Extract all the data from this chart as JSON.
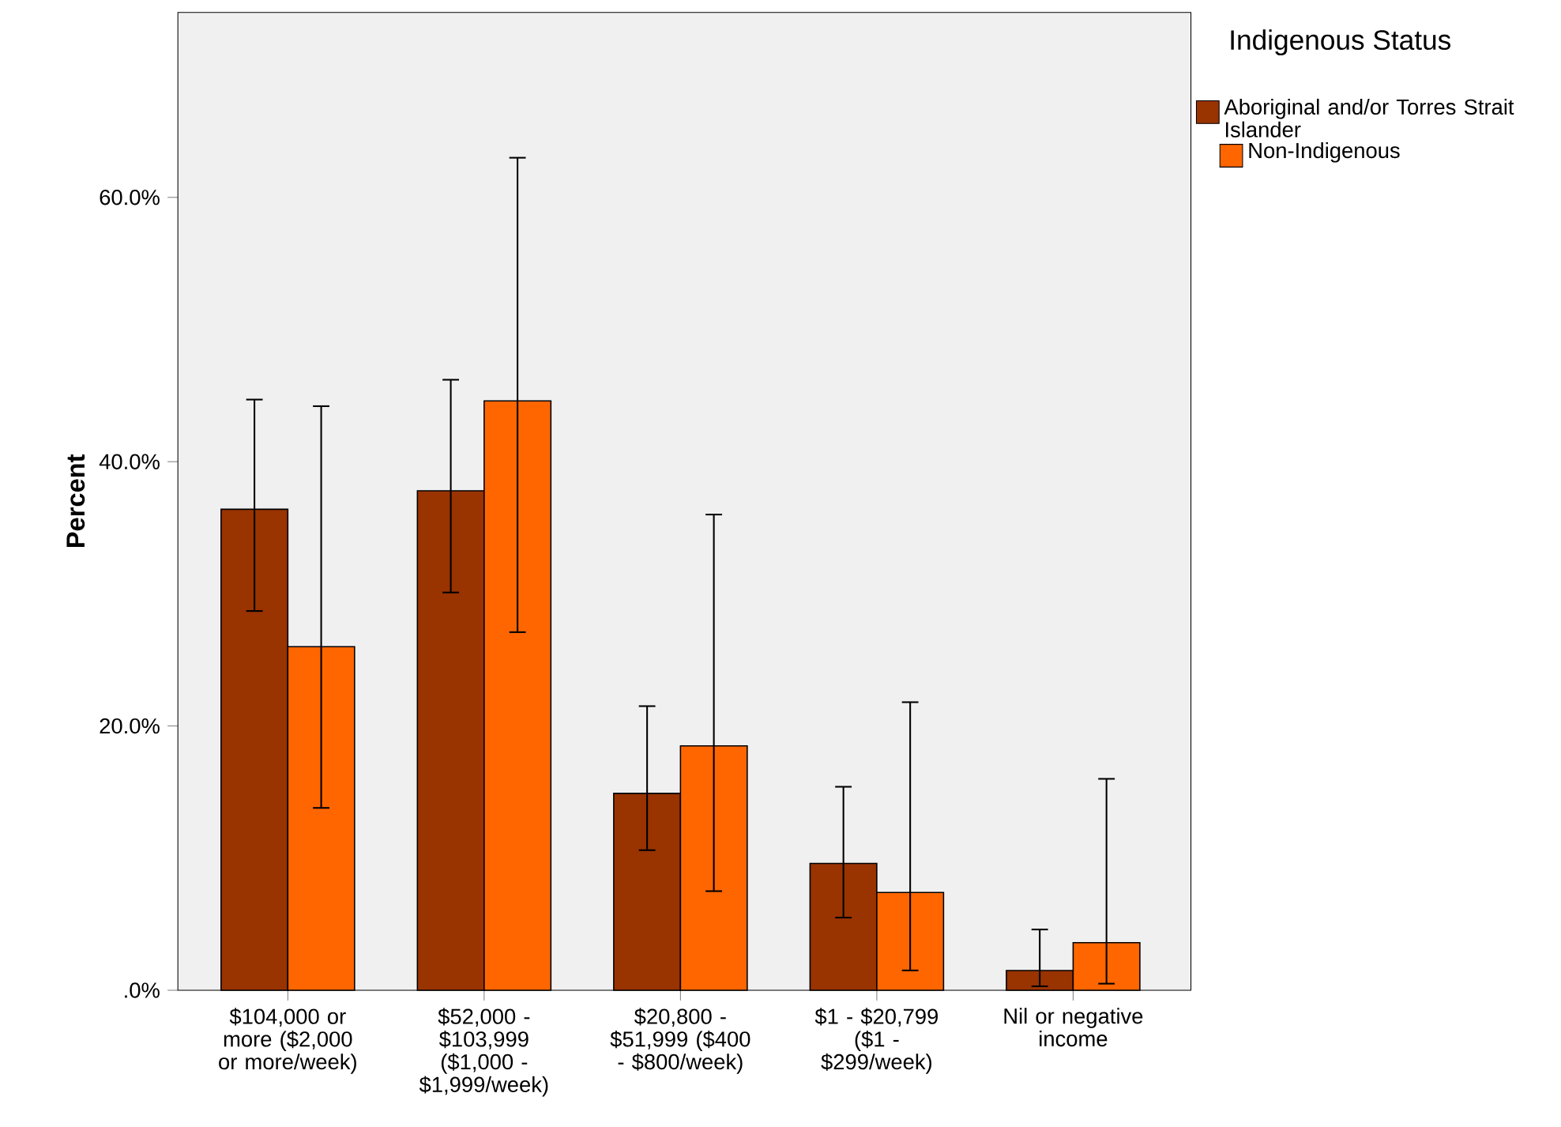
{
  "chart_data": {
    "type": "bar",
    "ylabel": "Percent",
    "legend_title": "Indigenous Status",
    "legend": "right",
    "categories": [
      "$104,000 or more ($2,000 or more/week)",
      "$52,000 - $103,999 ($1,000 - $1,999/week)",
      "$20,800 - $51,999 ($400 - $800/week)",
      "$1 - $20,799 ($1 - $299/week)",
      "Nil or negative income"
    ],
    "series": [
      {
        "name": "Aboriginal and/or Torres Strait Islander",
        "color": "#993300",
        "values": [
          36.4,
          37.8,
          14.9,
          9.6,
          1.5
        ],
        "errors": [
          [
            28.7,
            44.7
          ],
          [
            30.1,
            46.2
          ],
          [
            10.6,
            21.5
          ],
          [
            5.5,
            15.4
          ],
          [
            0.3,
            4.6
          ]
        ]
      },
      {
        "name": "Non-Indigenous",
        "color": "#ff6600",
        "values": [
          26.0,
          44.6,
          18.5,
          7.4,
          3.6
        ],
        "errors": [
          [
            13.8,
            44.2
          ],
          [
            27.1,
            63.0
          ],
          [
            7.5,
            36.0
          ],
          [
            1.5,
            21.8
          ],
          [
            0.5,
            16.0
          ]
        ]
      }
    ],
    "ylim": [
      0,
      74
    ],
    "yticks": [
      {
        "value": 0,
        "label": ".0%"
      },
      {
        "value": 20,
        "label": "20.0%"
      },
      {
        "value": 40,
        "label": "40.0%"
      },
      {
        "value": 60,
        "label": "60.0%"
      }
    ],
    "grid": false
  }
}
